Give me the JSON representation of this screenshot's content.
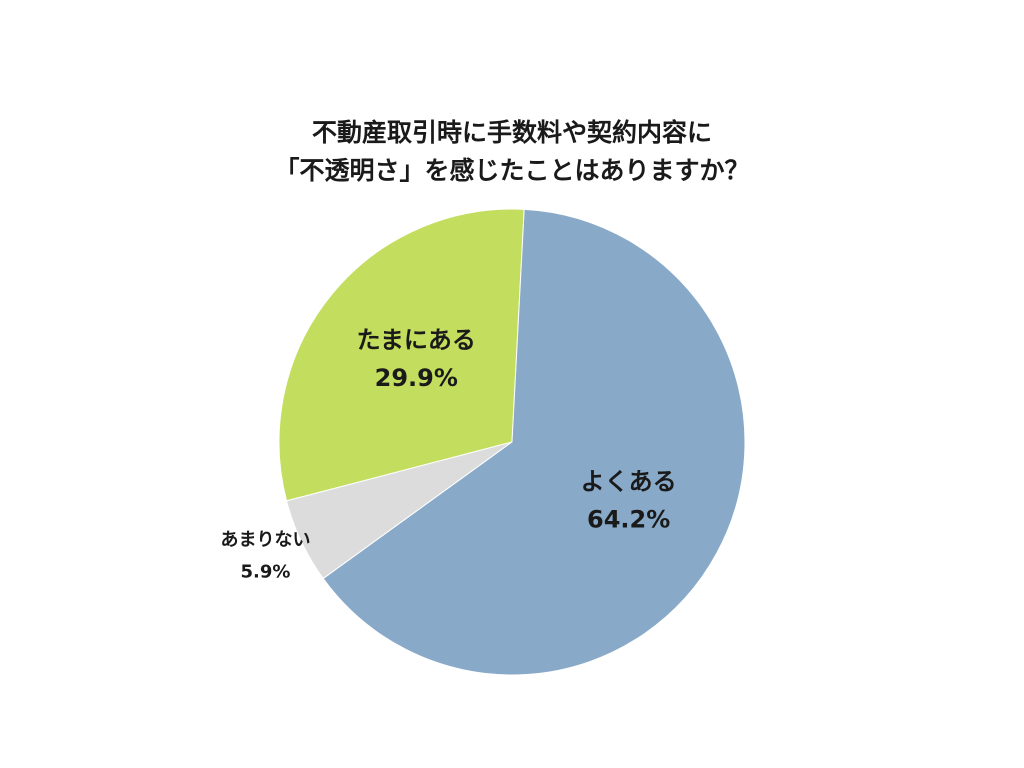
{
  "chart_data": {
    "type": "pie",
    "title_lines": [
      "不動産取引時に手数料や契約内容に",
      "「不透明さ」を感じたことはありますか？"
    ],
    "slices": [
      {
        "label": "たまにある",
        "value": 29.9,
        "value_label": "29.9%",
        "color": "#c3de5e"
      },
      {
        "label": "あまりない",
        "value": 5.9,
        "value_label": "5.9%",
        "color": "#dcdcdc"
      },
      {
        "label": "よくある",
        "value": 64.2,
        "value_label": "64.2%",
        "color": "#88a9c7"
      }
    ]
  }
}
